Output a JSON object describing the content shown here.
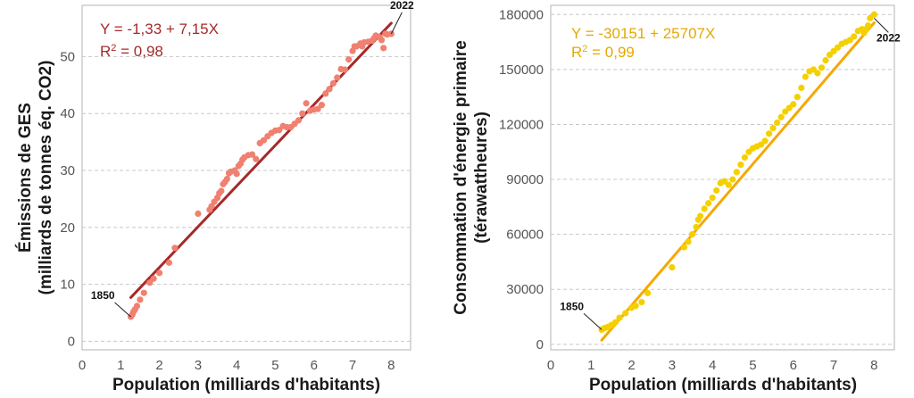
{
  "chart_data": [
    {
      "type": "scatter",
      "xlabel": "Population (milliards d'habitants)",
      "ylabel_line1": "Émissions de GES",
      "ylabel_line2": "(milliards de tonnes éq. CO2)",
      "xlim": [
        0,
        8.5
      ],
      "ylim": [
        -1.5,
        59
      ],
      "xticks": [
        "0",
        "1",
        "2",
        "3",
        "4",
        "5",
        "6",
        "7",
        "8"
      ],
      "xtick_values": [
        0,
        1,
        2,
        3,
        4,
        5,
        6,
        7,
        8
      ],
      "yticks": [
        "0",
        "10",
        "20",
        "30",
        "40",
        "50"
      ],
      "ytick_values": [
        0,
        10,
        20,
        30,
        40,
        50
      ],
      "grid": "horizontal dashed",
      "equation": "Y = -1,33 + 7,15X",
      "r2_prefix": "R",
      "r2_sup": "2",
      "r2_value": " = 0,98",
      "point_color": "#f08070",
      "line_color": "#a52a2a",
      "text_color": "#a52a2a",
      "regression": {
        "intercept": -1.33,
        "slope": 7.15,
        "x_from": 1.26,
        "x_to": 8.0
      },
      "annotations": [
        {
          "label": "1850",
          "x": 1.26,
          "y": 4.3
        },
        {
          "label": "2022",
          "x": 8.0,
          "y": 54.0
        }
      ],
      "points": [
        [
          1.26,
          4.3
        ],
        [
          1.3,
          4.7
        ],
        [
          1.33,
          5.2
        ],
        [
          1.37,
          5.6
        ],
        [
          1.42,
          6.2
        ],
        [
          1.5,
          7.3
        ],
        [
          1.6,
          8.5
        ],
        [
          1.75,
          10.3
        ],
        [
          1.85,
          11.0
        ],
        [
          2.0,
          12.0
        ],
        [
          2.25,
          13.8
        ],
        [
          2.4,
          16.4
        ],
        [
          3.0,
          22.4
        ],
        [
          3.3,
          23.1
        ],
        [
          3.35,
          23.7
        ],
        [
          3.42,
          24.5
        ],
        [
          3.5,
          25.2
        ],
        [
          3.55,
          26.0
        ],
        [
          3.6,
          26.4
        ],
        [
          3.65,
          27.6
        ],
        [
          3.7,
          28.0
        ],
        [
          3.75,
          28.5
        ],
        [
          3.8,
          29.5
        ],
        [
          3.85,
          29.8
        ],
        [
          3.95,
          30.0
        ],
        [
          4.0,
          29.4
        ],
        [
          4.05,
          30.8
        ],
        [
          4.1,
          31.2
        ],
        [
          4.15,
          31.9
        ],
        [
          4.2,
          32.3
        ],
        [
          4.3,
          32.7
        ],
        [
          4.4,
          32.8
        ],
        [
          4.5,
          32.0
        ],
        [
          4.6,
          34.8
        ],
        [
          4.7,
          35.3
        ],
        [
          4.8,
          36.0
        ],
        [
          4.9,
          36.6
        ],
        [
          5.0,
          37.0
        ],
        [
          5.1,
          37.1
        ],
        [
          5.2,
          37.8
        ],
        [
          5.3,
          37.6
        ],
        [
          5.4,
          37.6
        ],
        [
          5.5,
          38.2
        ],
        [
          5.6,
          38.8
        ],
        [
          5.7,
          40.0
        ],
        [
          5.8,
          41.8
        ],
        [
          5.9,
          40.5
        ],
        [
          6.0,
          40.7
        ],
        [
          6.1,
          40.8
        ],
        [
          6.2,
          41.5
        ],
        [
          6.3,
          43.5
        ],
        [
          6.4,
          44.3
        ],
        [
          6.5,
          45.3
        ],
        [
          6.6,
          46.3
        ],
        [
          6.7,
          47.8
        ],
        [
          6.8,
          47.7
        ],
        [
          6.9,
          49.5
        ],
        [
          7.0,
          51.0
        ],
        [
          7.05,
          51.8
        ],
        [
          7.1,
          51.8
        ],
        [
          7.2,
          52.3
        ],
        [
          7.25,
          51.8
        ],
        [
          7.3,
          52.5
        ],
        [
          7.4,
          52.6
        ],
        [
          7.5,
          52.8
        ],
        [
          7.55,
          53.2
        ],
        [
          7.6,
          53.7
        ],
        [
          7.7,
          53.4
        ],
        [
          7.75,
          52.9
        ],
        [
          7.8,
          51.5
        ],
        [
          7.85,
          54.0
        ],
        [
          7.9,
          53.9
        ],
        [
          8.0,
          54.0
        ]
      ]
    },
    {
      "type": "scatter",
      "xlabel": "Population (milliards d'habitants)",
      "ylabel_line1": "Consommation d'énergie primaire",
      "ylabel_line2": "(térawattheures)",
      "xlim": [
        0,
        8.5
      ],
      "ylim": [
        -3000,
        185000
      ],
      "xticks": [
        "0",
        "1",
        "2",
        "3",
        "4",
        "5",
        "6",
        "7",
        "8"
      ],
      "xtick_values": [
        0,
        1,
        2,
        3,
        4,
        5,
        6,
        7,
        8
      ],
      "yticks": [
        "0",
        "30000",
        "60000",
        "90000",
        "120000",
        "150000",
        "180000"
      ],
      "ytick_values": [
        0,
        30000,
        60000,
        90000,
        120000,
        150000,
        180000
      ],
      "grid": "horizontal dashed",
      "equation": "Y = -30151 + 25707X",
      "r2_prefix": "R",
      "r2_sup": "2",
      "r2_value": " = 0,99",
      "point_color": "#f5d000",
      "line_color": "#f5a800",
      "text_color": "#e6a800",
      "regression": {
        "intercept": -30151,
        "slope": 25707,
        "x_from": 1.26,
        "x_to": 8.0
      },
      "annotations": [
        {
          "label": "1850",
          "x": 1.26,
          "y": 8000
        },
        {
          "label": "2022",
          "x": 8.0,
          "y": 178000
        }
      ],
      "points": [
        [
          1.26,
          8000
        ],
        [
          1.3,
          8500
        ],
        [
          1.35,
          9000
        ],
        [
          1.42,
          9500
        ],
        [
          1.5,
          10500
        ],
        [
          1.6,
          12000
        ],
        [
          1.7,
          14500
        ],
        [
          1.85,
          17000
        ],
        [
          2.0,
          20000
        ],
        [
          2.1,
          21000
        ],
        [
          2.25,
          23000
        ],
        [
          2.4,
          28000
        ],
        [
          3.0,
          42000
        ],
        [
          3.3,
          53000
        ],
        [
          3.4,
          56000
        ],
        [
          3.5,
          60000
        ],
        [
          3.6,
          64000
        ],
        [
          3.65,
          68000
        ],
        [
          3.7,
          70000
        ],
        [
          3.8,
          74000
        ],
        [
          3.9,
          77000
        ],
        [
          4.0,
          80000
        ],
        [
          4.1,
          84000
        ],
        [
          4.2,
          88000
        ],
        [
          4.3,
          89000
        ],
        [
          4.4,
          87000
        ],
        [
          4.5,
          90000
        ],
        [
          4.6,
          94000
        ],
        [
          4.7,
          98000
        ],
        [
          4.8,
          102000
        ],
        [
          4.9,
          105000
        ],
        [
          5.0,
          107000
        ],
        [
          5.1,
          108000
        ],
        [
          5.2,
          109000
        ],
        [
          5.3,
          111000
        ],
        [
          5.4,
          115000
        ],
        [
          5.5,
          118000
        ],
        [
          5.6,
          121000
        ],
        [
          5.7,
          124000
        ],
        [
          5.8,
          127000
        ],
        [
          5.9,
          129000
        ],
        [
          6.0,
          131000
        ],
        [
          6.1,
          135000
        ],
        [
          6.2,
          140000
        ],
        [
          6.3,
          146000
        ],
        [
          6.4,
          149000
        ],
        [
          6.5,
          150000
        ],
        [
          6.6,
          148000
        ],
        [
          6.7,
          151000
        ],
        [
          6.8,
          155000
        ],
        [
          6.9,
          158000
        ],
        [
          7.0,
          160000
        ],
        [
          7.1,
          162000
        ],
        [
          7.2,
          164000
        ],
        [
          7.3,
          165000
        ],
        [
          7.4,
          166000
        ],
        [
          7.5,
          168000
        ],
        [
          7.6,
          171000
        ],
        [
          7.7,
          172000
        ],
        [
          7.75,
          170000
        ],
        [
          7.8,
          172000
        ],
        [
          7.85,
          174000
        ],
        [
          7.9,
          178000
        ],
        [
          8.0,
          180000
        ]
      ]
    }
  ]
}
